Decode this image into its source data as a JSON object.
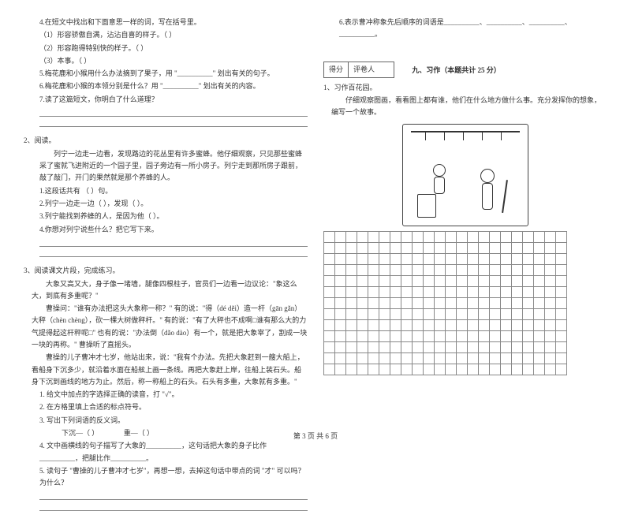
{
  "col1": {
    "q4": {
      "head": "4.在短文中找出和下面意思一样的词，写在括号里。",
      "items": [
        "（1）形容骄傲自满，沾沾自喜的样子。（        ）",
        "（2）形容跑得特别快的样子。（        ）",
        "（3）本事。（        ）"
      ]
    },
    "q5": "5.梅花鹿和小猴用什么办法摘到了果子，用 \"__________\" 划出有关的句子。",
    "q6": "6.梅花鹿和小猴的本领分别是什么？用 \"__________\" 划出有关的内容。",
    "q7": "7.读了这篇短文，你明白了什么道理？",
    "reading2": {
      "num": "2、阅读。",
      "passage": "　　列宁一边走一边看，发现路边的花丛里有许多蜜蜂。他仔细观察，只见那些蜜蜂采了蜜就飞进附近的一个园子里，园子旁边有一所小房子。列宁走到那所房子跟前，敲了敲门，开门的果然就是那个养蜂的人。",
      "subq": [
        "1.这段话共有 （   ）句。",
        "2.列宁一边走一边（          ），发现（                         ）。",
        "3.列宁能找到养蜂的人，是因为他（                               ）。",
        "4.你想对列宁说些什么？把它写下来。"
      ]
    },
    "reading3": {
      "num": "3、阅读课文片段，完成练习。",
      "p1": "　　大象又高又大，身子像一堵墙，腿像四根柱子，官员们一边看一边议论：\"象这么大，到底有多重呢？\"",
      "p2": "　　曹操问：\"谁有办法把这头大象称一称？\" 有的说：\"得（dé   děi）造一杆（gān  gǎn）大秤（chèn   chèng），砍一棵大树做秤杆。\" 有的说：\"有了大秤也不成啊□谁有那么大的力气提得起这杆秤呢□\" 也有的说：\"办法倒（dǎo   dào）有一个，就是把大象宰了，割成一块一块的再称。\" 曹操听了直摇头。",
      "p3": "　　曹操的儿子曹冲才七岁，他站出来，说：\"我有个办法。先把大象赶到一艘大船上，看船身下沉多少，就沿着水面在船舷上画一条线。再把大象赶上岸，往船上装石头。船身下沉到画线的地方为止。然后，称一称船上的石头。石头有多重，大象就有多重。\"",
      "subq": [
        "1. 给文中加点的字选择正确的读音，打 \"√\"。",
        "2. 在方格里填上合适的标点符号。",
        "3. 写出下列词语的反义词。",
        "　　下沉—（        ）　　　　重—（        ）",
        "4. 文中画横线的句子描写了大象的__________，这句话把大象的身子比作__________，把腿比作__________。",
        "5. 读句子 \"曹操的儿子曹冲才七岁\"，再想一想，去掉这句话中带点的词 \"才\" 可以吗？为什么？"
      ]
    }
  },
  "col2": {
    "q6": "6.表示曹冲称象先后顺序的词语是__________、__________、__________、__________。",
    "scoreLabels": {
      "a": "得分",
      "b": "评卷人"
    },
    "sectionTitle": "九、习作（本题共计 25 分）",
    "writing": {
      "num": "1、习作百花园。",
      "instr": "　　仔细观察图画，看看图上都有谁，他们在什么地方做什么事。充分发挥你的想象，编写一个故事。"
    },
    "footer": "第 3 页 共 6 页"
  },
  "grid": {
    "rows": 13,
    "cols": 22
  }
}
